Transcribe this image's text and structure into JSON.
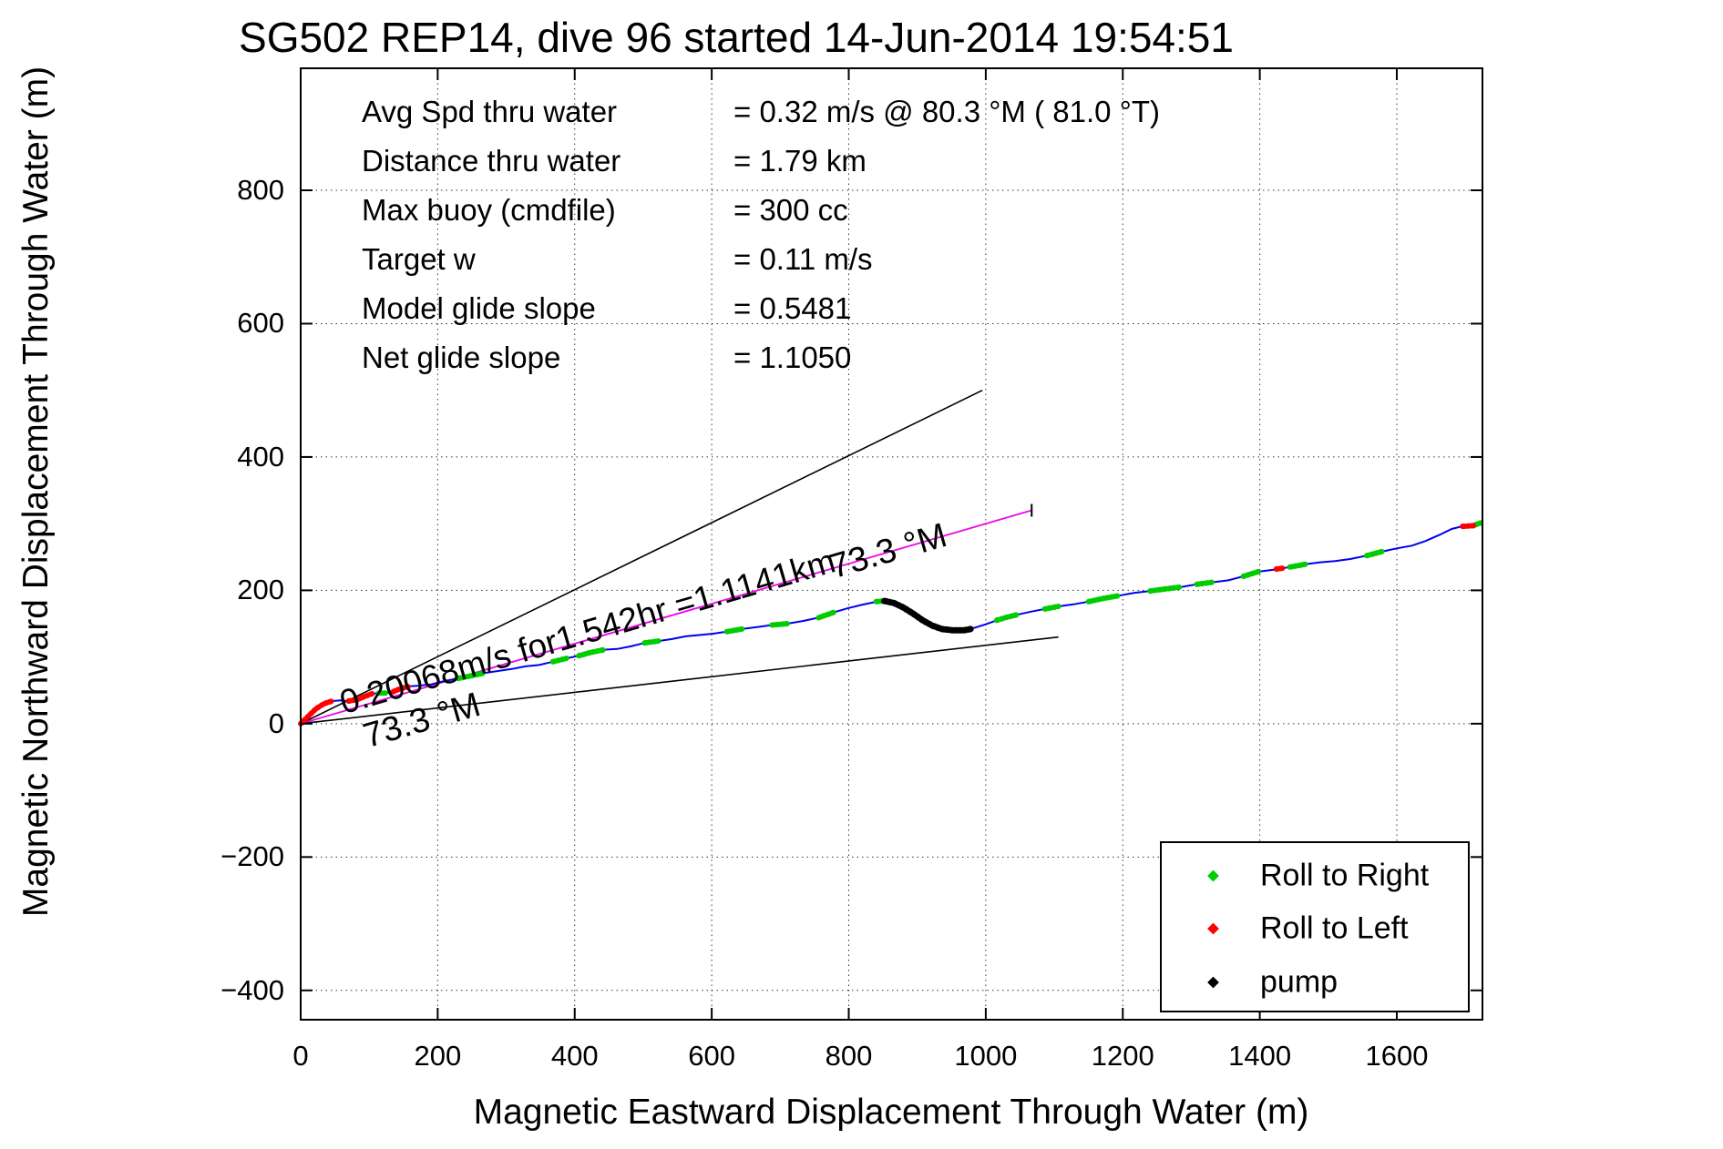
{
  "title": "SG502 REP14, dive 96 started 14-Jun-2014 19:54:51",
  "stats": {
    "rows": [
      {
        "label": "Avg Spd thru water",
        "value": "=  0.32 m/s @  80.3 °M ( 81.0 °T)"
      },
      {
        "label": "Distance thru water",
        "value": "=  1.79 km"
      },
      {
        "label": "Max buoy (cmdfile)",
        "value": "= 300 cc"
      },
      {
        "label": "Target w",
        "value": "= 0.11 m/s"
      },
      {
        "label": "Model glide slope",
        "value": "= 0.5481"
      },
      {
        "label": "Net glide slope",
        "value": "= 1.1050"
      }
    ]
  },
  "legend": {
    "entries": [
      {
        "label": "Roll to Right",
        "color": "#00cc00"
      },
      {
        "label": "Roll to Left",
        "color": "#ff0000"
      },
      {
        "label": "pump",
        "color": "#000000"
      }
    ]
  },
  "chart_data": {
    "type": "line",
    "title": "SG502 REP14, dive 96 started 14-Jun-2014 19:54:51",
    "xlabel": "Magnetic Eastward Displacement Through Water (m)",
    "ylabel": "Magnetic Northward Displacement Through Water (m)",
    "xlim": [
      0,
      1725
    ],
    "ylim": [
      -444,
      983
    ],
    "xticks": [
      0,
      200,
      400,
      600,
      800,
      1000,
      1200,
      1400,
      1600
    ],
    "yticks": [
      -400,
      -200,
      0,
      200,
      400,
      600,
      800
    ],
    "grid": "dotted",
    "track_color": "#0000ee",
    "track": [
      [
        0,
        0
      ],
      [
        10,
        10
      ],
      [
        22,
        22
      ],
      [
        34,
        30
      ],
      [
        46,
        34
      ],
      [
        58,
        35
      ],
      [
        70,
        34
      ],
      [
        82,
        36
      ],
      [
        94,
        41
      ],
      [
        104,
        45
      ],
      [
        114,
        46
      ],
      [
        124,
        46
      ],
      [
        135,
        48
      ],
      [
        147,
        53
      ],
      [
        159,
        56
      ],
      [
        173,
        57
      ],
      [
        190,
        59
      ],
      [
        210,
        64
      ],
      [
        230,
        68
      ],
      [
        250,
        72
      ],
      [
        268,
        76
      ],
      [
        288,
        79
      ],
      [
        308,
        82
      ],
      [
        328,
        86
      ],
      [
        348,
        88
      ],
      [
        368,
        93
      ],
      [
        388,
        98
      ],
      [
        406,
        102
      ],
      [
        424,
        107
      ],
      [
        443,
        111
      ],
      [
        462,
        112
      ],
      [
        482,
        116
      ],
      [
        502,
        121
      ],
      [
        522,
        124
      ],
      [
        542,
        127
      ],
      [
        562,
        131
      ],
      [
        582,
        133
      ],
      [
        602,
        135
      ],
      [
        622,
        138
      ],
      [
        644,
        142
      ],
      [
        666,
        145
      ],
      [
        688,
        148
      ],
      [
        710,
        150
      ],
      [
        733,
        154
      ],
      [
        756,
        159
      ],
      [
        778,
        167
      ],
      [
        798,
        173
      ],
      [
        818,
        178
      ],
      [
        836,
        182
      ],
      [
        852,
        184
      ],
      [
        866,
        181
      ],
      [
        880,
        174
      ],
      [
        894,
        165
      ],
      [
        908,
        155
      ],
      [
        922,
        147
      ],
      [
        936,
        142
      ],
      [
        952,
        140
      ],
      [
        968,
        140
      ],
      [
        984,
        144
      ],
      [
        1000,
        149
      ],
      [
        1016,
        155
      ],
      [
        1032,
        160
      ],
      [
        1048,
        164
      ],
      [
        1066,
        168
      ],
      [
        1086,
        172
      ],
      [
        1106,
        176
      ],
      [
        1128,
        179
      ],
      [
        1150,
        183
      ],
      [
        1172,
        188
      ],
      [
        1194,
        192
      ],
      [
        1216,
        196
      ],
      [
        1240,
        199
      ],
      [
        1262,
        202
      ],
      [
        1285,
        205
      ],
      [
        1308,
        209
      ],
      [
        1330,
        212
      ],
      [
        1354,
        215
      ],
      [
        1376,
        221
      ],
      [
        1398,
        228
      ],
      [
        1420,
        231
      ],
      [
        1444,
        235
      ],
      [
        1466,
        239
      ],
      [
        1488,
        242
      ],
      [
        1510,
        244
      ],
      [
        1532,
        247
      ],
      [
        1556,
        252
      ],
      [
        1578,
        258
      ],
      [
        1600,
        263
      ],
      [
        1622,
        267
      ],
      [
        1642,
        274
      ],
      [
        1662,
        283
      ],
      [
        1680,
        292
      ],
      [
        1695,
        296
      ],
      [
        1710,
        297
      ],
      [
        1722,
        300
      ]
    ],
    "clusters": {
      "roll_to_right": [
        [
          [
            114,
            46
          ],
          [
            124,
            46
          ]
        ],
        [
          [
            230,
            68
          ],
          [
            250,
            72
          ],
          [
            268,
            76
          ]
        ],
        [
          [
            368,
            93
          ],
          [
            388,
            98
          ]
        ],
        [
          [
            406,
            102
          ],
          [
            424,
            107
          ],
          [
            443,
            111
          ]
        ],
        [
          [
            502,
            121
          ],
          [
            522,
            124
          ]
        ],
        [
          [
            622,
            138
          ],
          [
            644,
            142
          ]
        ],
        [
          [
            688,
            148
          ],
          [
            710,
            150
          ]
        ],
        [
          [
            756,
            159
          ],
          [
            778,
            167
          ]
        ],
        [
          [
            840,
            183
          ],
          [
            852,
            184
          ]
        ],
        [
          [
            1016,
            155
          ],
          [
            1032,
            160
          ],
          [
            1048,
            164
          ]
        ],
        [
          [
            1086,
            172
          ],
          [
            1106,
            176
          ]
        ],
        [
          [
            1150,
            183
          ],
          [
            1172,
            188
          ],
          [
            1194,
            192
          ]
        ],
        [
          [
            1240,
            199
          ],
          [
            1262,
            202
          ],
          [
            1285,
            205
          ]
        ],
        [
          [
            1308,
            209
          ],
          [
            1330,
            212
          ]
        ],
        [
          [
            1376,
            221
          ],
          [
            1398,
            228
          ]
        ],
        [
          [
            1444,
            235
          ],
          [
            1466,
            239
          ]
        ],
        [
          [
            1556,
            252
          ],
          [
            1578,
            258
          ]
        ],
        [
          [
            1714,
            298
          ],
          [
            1722,
            301
          ]
        ]
      ],
      "roll_to_left": [
        [
          [
            0,
            0
          ],
          [
            10,
            10
          ],
          [
            22,
            22
          ],
          [
            34,
            30
          ],
          [
            46,
            34
          ]
        ],
        [
          [
            70,
            34
          ],
          [
            82,
            36
          ],
          [
            94,
            41
          ],
          [
            104,
            45
          ]
        ],
        [
          [
            135,
            48
          ],
          [
            147,
            53
          ],
          [
            159,
            56
          ]
        ],
        [
          [
            1424,
            232
          ],
          [
            1433,
            233
          ]
        ],
        [
          [
            1696,
            296
          ],
          [
            1712,
            297
          ]
        ]
      ],
      "pump": [
        [
          [
            852,
            184
          ],
          [
            866,
            181
          ],
          [
            880,
            174
          ],
          [
            894,
            165
          ],
          [
            908,
            155
          ],
          [
            922,
            147
          ],
          [
            936,
            142
          ],
          [
            952,
            140
          ],
          [
            968,
            140
          ],
          [
            978,
            142
          ]
        ]
      ]
    },
    "reference_lines": [
      {
        "name": "bearing-fan-upper",
        "color": "#000000",
        "from": [
          0,
          0
        ],
        "to": [
          995,
          500
        ]
      },
      {
        "name": "bearing-73.3-black",
        "color": "#000000",
        "from": [
          0,
          0
        ],
        "to": [
          1067,
          320
        ]
      },
      {
        "name": "mean-displacement-magenta",
        "color": "#ff00ff",
        "from": [
          0,
          0
        ],
        "to": [
          1067,
          320
        ]
      },
      {
        "name": "bearing-fan-lower",
        "color": "#000000",
        "from": [
          0,
          0
        ],
        "to": [
          1106,
          130
        ]
      }
    ],
    "annotations": [
      {
        "text": "0.20068m/s for1.542hr =1.1141km",
        "x": 380,
        "y": 788,
        "rotation": -16.2,
        "font_size": 37
      },
      {
        "text": "73.3 °M",
        "x": 406,
        "y": 826,
        "rotation": -16.2,
        "font_size": 38
      },
      {
        "text": "73.3 °M",
        "x": 918,
        "y": 640,
        "rotation": -16.2,
        "font_size": 38
      }
    ],
    "legend_position": "lower right"
  }
}
